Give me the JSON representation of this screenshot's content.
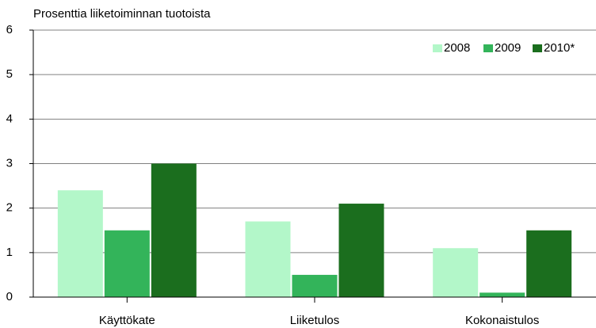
{
  "chart_data": {
    "type": "bar",
    "y_axis_label": "Prosenttia liiketoiminnan tuotoista",
    "categories": [
      "Käyttökate",
      "Liiketulos",
      "Kokonaistulos"
    ],
    "series": [
      {
        "name": "2008",
        "color": "#b3f7c9",
        "values": [
          2.4,
          1.7,
          1.1
        ]
      },
      {
        "name": "2009",
        "color": "#33b45a",
        "values": [
          1.5,
          0.5,
          0.1
        ]
      },
      {
        "name": "2010*",
        "color": "#1b6e1e",
        "values": [
          3.0,
          2.1,
          1.5
        ]
      }
    ],
    "ylim": [
      0,
      6
    ],
    "yticks": [
      0,
      1,
      2,
      3,
      4,
      5,
      6
    ],
    "grid": true,
    "legend": "top-right"
  }
}
